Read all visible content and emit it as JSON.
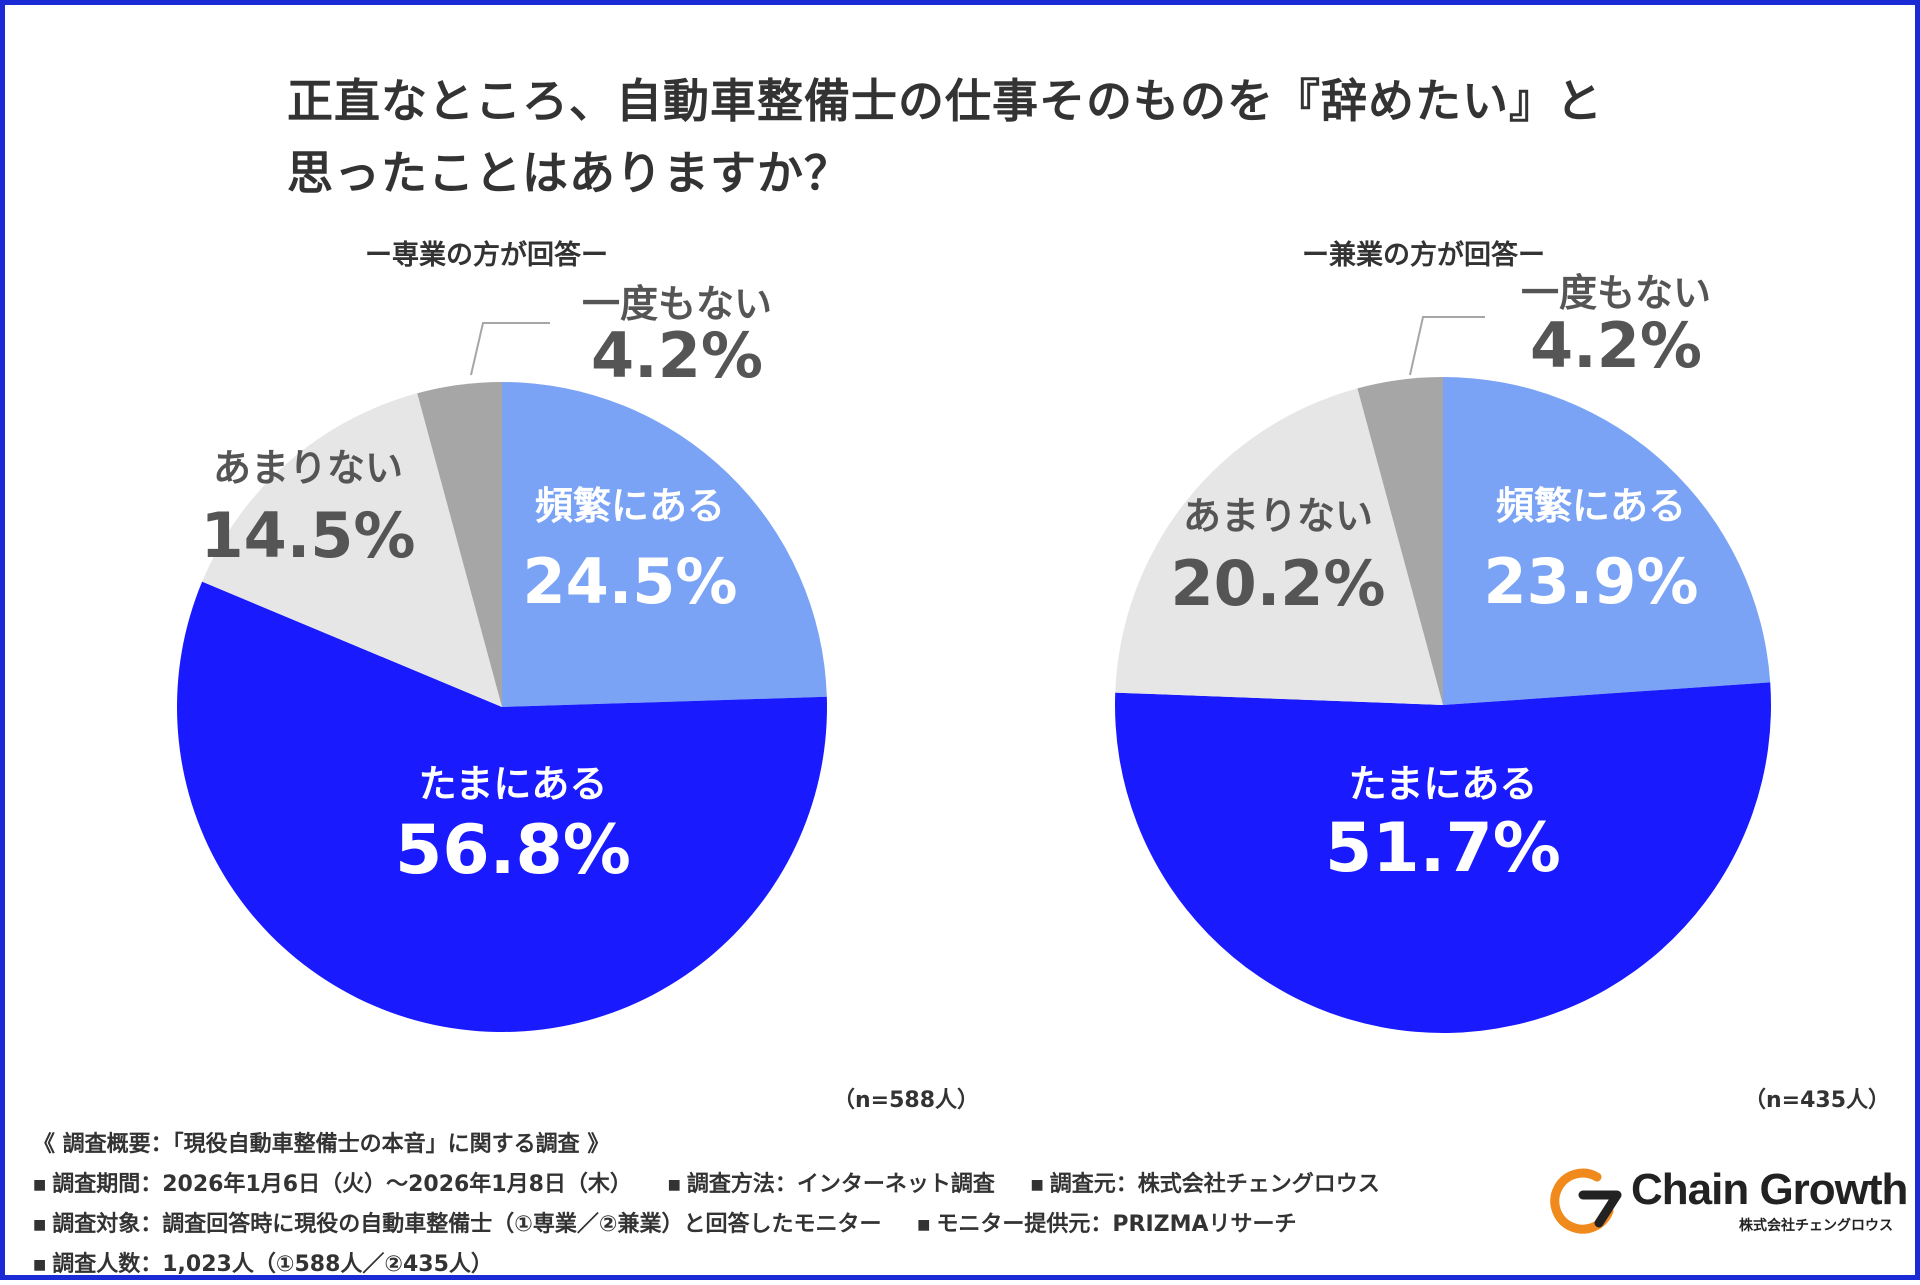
{
  "title": {
    "line1": "正直なところ、自動車整備士の仕事そのものを『辞めたい』と",
    "line2": "思ったことはありますか？"
  },
  "chart_data": [
    {
      "type": "pie",
      "subtitle": "ー専業の方が回答ー",
      "sample": "（n=588人）",
      "slices": [
        {
          "label": "頻繁にある",
          "value": 24.5,
          "display": "24.5%",
          "color": "#7aa3f5",
          "text_color": "#ffffff"
        },
        {
          "label": "たまにある",
          "value": 56.8,
          "display": "56.8%",
          "color": "#1a1aff",
          "text_color": "#ffffff"
        },
        {
          "label": "あまりない",
          "value": 14.5,
          "display": "14.5%",
          "color": "#e6e6e6",
          "text_color": "#555555"
        },
        {
          "label": "一度もない",
          "value": 4.2,
          "display": "4.2%",
          "color": "#a6a6a6",
          "text_color": "#555555"
        }
      ]
    },
    {
      "type": "pie",
      "subtitle": "ー兼業の方が回答ー",
      "sample": "（n=435人）",
      "slices": [
        {
          "label": "頻繁にある",
          "value": 23.9,
          "display": "23.9%",
          "color": "#7aa3f5",
          "text_color": "#ffffff"
        },
        {
          "label": "たまにある",
          "value": 51.7,
          "display": "51.7%",
          "color": "#1a1aff",
          "text_color": "#ffffff"
        },
        {
          "label": "あまりない",
          "value": 20.2,
          "display": "20.2%",
          "color": "#e6e6e6",
          "text_color": "#555555"
        },
        {
          "label": "一度もない",
          "value": 4.2,
          "display": "4.2%",
          "color": "#a6a6a6",
          "text_color": "#555555"
        }
      ]
    }
  ],
  "summary": {
    "heading": "《 調査概要：「現役自動車整備士の本音」に関する調査 》",
    "period": "調査期間：2026年1月6日（火）〜2026年1月8日（木）",
    "method": "調査方法：インターネット調査",
    "source": "調査元：株式会社チェングロウス",
    "target": "調査対象：調査回答時に現役の自動車整備士（①専業／②兼業）と回答したモニター",
    "provider": "モニター提供元：PRIZMAリサーチ",
    "count": "調査人数：1,023人（①588人／②435人）"
  },
  "logo": {
    "text": "Chain Growth",
    "sub": "株式会社チェングロウス",
    "accent": "#f08a1c"
  }
}
